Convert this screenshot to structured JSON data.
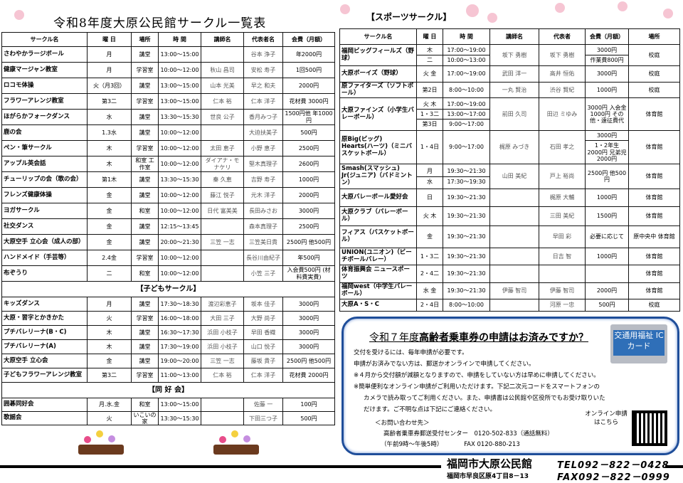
{
  "title": "令和8年度大原公民館サークル一覧表",
  "general": {
    "headers": [
      "サークル名",
      "曜 日",
      "場所",
      "時 間",
      "講師名",
      "代表者名",
      "会費（月額）"
    ],
    "rows": [
      [
        "さわやかラージボール",
        "月",
        "講堂",
        "13:00～15:00",
        "",
        "谷本 浄子",
        "年2000円"
      ],
      [
        "健康マージャン教室",
        "月",
        "学習室",
        "10:00～12:00",
        "秋山 昌司",
        "安松 寿子",
        "1回500円"
      ],
      [
        "ロコモ体操",
        "火（月3回）",
        "講堂",
        "13:00～15:00",
        "山本 光美",
        "早之 和夫",
        "2000円"
      ],
      [
        "フラワーアレンジ教室",
        "第3二",
        "学習室",
        "13:00～15:00",
        "仁本 裕",
        "仁本 洋子",
        "花材費 3000円"
      ],
      [
        "ほがらかフォークダンス",
        "水",
        "講堂",
        "13:30～15:30",
        "世良 公子",
        "香月みつ子",
        "1500円他 年1000円"
      ],
      [
        "鹿の会",
        "1.3水",
        "講堂",
        "10:00～12:00",
        "",
        "大迫扶美子",
        "500円"
      ],
      [
        "ペン・筆サークル",
        "木",
        "学習室",
        "10:00～12:00",
        "太田 恵子",
        "小野 恵子",
        "2500円"
      ],
      [
        "アップル英会話",
        "木",
        "和室 工作室",
        "10:00～12:00",
        "ダイアナ・モナケリ",
        "堅木真理子",
        "2600円"
      ],
      [
        "チューリップの会（歌の会）",
        "第1木",
        "講堂",
        "13:30～15:30",
        "秦 久恵",
        "吉野 寿子",
        "1000円"
      ],
      [
        "フレンズ健康体操",
        "金",
        "講堂",
        "10:00～12:00",
        "藤江 悦子",
        "元木 洋子",
        "2000円"
      ],
      [
        "ヨガサークル",
        "金",
        "和室",
        "10:00～12:00",
        "日代 富美美",
        "長田みさお",
        "3000円"
      ],
      [
        "社交ダンス",
        "金",
        "講堂",
        "12:15～13:45",
        "",
        "森本真理子",
        "2500円"
      ],
      [
        "大原空手 立心会（成人の部）",
        "金",
        "講堂",
        "20:00～21:30",
        "三笠 一志",
        "三笠美日貴",
        "2500円 他500円"
      ],
      [
        "ハンドメイド（手芸等）",
        "2.4金",
        "学習室",
        "10:00～12:00",
        "",
        "長谷川由紀子",
        "年500円"
      ],
      [
        "布ぞうり",
        "二",
        "和室",
        "10:00～12:00",
        "",
        "小笠 三子",
        "入会費500円 (材料費実費)"
      ]
    ]
  },
  "kids": {
    "section": "【子どもサークル】",
    "rows": [
      [
        "キッズダンス",
        "月",
        "講堂",
        "17:30～18:30",
        "渡辺彩恵子",
        "坂本 佳子",
        "3000円"
      ],
      [
        "大原・習字とかきかた",
        "火",
        "学習室",
        "16:00～18:00",
        "大田 三子",
        "大野 尚子",
        "3000円"
      ],
      [
        "プチバレリーナ(B・C)",
        "木",
        "講堂",
        "16:30～17:30",
        "浜田 小枝子",
        "早田 香織",
        "3000円"
      ],
      [
        "プチバレリーナ(A)",
        "木",
        "講堂",
        "17:30～19:00",
        "浜田 小枝子",
        "山口 悦子",
        "3000円"
      ],
      [
        "大原空手 立心会",
        "金",
        "講堂",
        "19:00～20:00",
        "三笠 一志",
        "藤坂 貴子",
        "2500円 他500円"
      ],
      [
        "子どもフラワーアレンジ教室",
        "第3二",
        "学習室",
        "11:00～13:00",
        "仁本 裕",
        "仁本 洋子",
        "花材費 2000円"
      ]
    ]
  },
  "hobby": {
    "section": "【同 好 会】",
    "rows": [
      [
        "囲碁同好会",
        "月.水.金",
        "和室",
        "13:00～15:00",
        "",
        "佐藤 一",
        "100円"
      ],
      [
        "歌謡会",
        "火",
        "いこいの家",
        "13:30～15:30",
        "",
        "下田三つ子",
        "500円"
      ]
    ]
  },
  "sports": {
    "title": "【スポーツサークル】",
    "headers": [
      "サークル名",
      "曜 日",
      "時 間",
      "講師名",
      "代表者",
      "会費（月額）",
      "場所"
    ],
    "rows": [
      {
        "name": "福岡ビッグフィールズ（野球）",
        "day": [
          "木",
          "二"
        ],
        "time": [
          "17:00～19:00",
          "10:00～13:00"
        ],
        "inst": "坂下 勇樹",
        "rep": "坂下 勇樹",
        "fee": [
          "3000円",
          "作業費800円"
        ],
        "place": "校庭"
      },
      {
        "name": "大原ボーイズ（野球）",
        "day": [
          "火 金"
        ],
        "time": [
          "17:00～19:00"
        ],
        "inst": "武田 洋一",
        "rep": "高井 恒佑",
        "fee": [
          "3000円"
        ],
        "place": "校庭"
      },
      {
        "name": "原ファイターズ（ソフトボール）",
        "day": [
          "第2日"
        ],
        "time": [
          "8:00～10:00"
        ],
        "inst": "一丸 賢治",
        "rep": "渋谷 賢紀",
        "fee": [
          "1000円"
        ],
        "place": "校庭"
      },
      {
        "name": "大原ファインズ（小学生バレーボール）",
        "day": [
          "火 木",
          "1・3二",
          "第3日"
        ],
        "time": [
          "17:00～19:00",
          "13:00～17:00",
          "9:00～17:00"
        ],
        "inst": "前田 久司",
        "rep": "田辺 ミゆみ",
        "fee": [
          "3000円 入会金1000円 その他・遠征費代"
        ],
        "place": "体育館"
      },
      {
        "name": "原Big(ビッグ) Hearts(ハーツ)（ミニバスケットボール）",
        "day": [
          "1・4日"
        ],
        "time": [
          "9:00～17:00"
        ],
        "inst": "梶原 みづき",
        "rep": "石田 孝之",
        "fee": [
          "3000円",
          "1・2年生 2000円 兄弟児2000円"
        ],
        "place": "体育館"
      },
      {
        "name": "Smash(スマッシュ) Jr(ジュニア)（バドミントン）",
        "day": [
          "月",
          "水"
        ],
        "time": [
          "19:30～21:30",
          "17:30～19:30"
        ],
        "inst": "山田 美紀",
        "rep": "戸上 裕尚",
        "fee": [
          "2500円 他500円"
        ],
        "place": "体育館"
      },
      {
        "name": "大原バレーボール愛好会",
        "day": [
          "日"
        ],
        "time": [
          "19:30～21:30"
        ],
        "inst": "",
        "rep": "梶原 大輔",
        "fee": [
          "1000円"
        ],
        "place": "体育館"
      },
      {
        "name": "大原クラブ（バレーボール）",
        "day": [
          "火 木"
        ],
        "time": [
          "19:30～21:30"
        ],
        "inst": "",
        "rep": "三田 美紀",
        "fee": [
          "1500円"
        ],
        "place": "体育館"
      },
      {
        "name": "フィアス（バスケットボール）",
        "day": [
          "金"
        ],
        "time": [
          "19:30～21:30"
        ],
        "inst": "",
        "rep": "早田 彩",
        "fee": [
          "必要に応じて"
        ],
        "place": "原中央中 体育館"
      },
      {
        "name": "UNION(ユニオン)（ビーチボールバレー）",
        "day": [
          "1・3二"
        ],
        "time": [
          "19:30～21:30"
        ],
        "inst": "",
        "rep": "日吉 智",
        "fee": [
          "1000円"
        ],
        "place": "体育館"
      },
      {
        "name": "体育振興会 ニュースポーツ",
        "day": [
          "2・4二"
        ],
        "time": [
          "19:30～21:30"
        ],
        "inst": "",
        "rep": "",
        "fee": [
          ""
        ],
        "place": "体育館"
      },
      {
        "name": "福岡west（中学生バレーボール）",
        "day": [
          "水 金"
        ],
        "time": [
          "19:30～21:30"
        ],
        "inst": "伊藤 智司",
        "rep": "伊藤 智司",
        "fee": [
          "2000円"
        ],
        "place": "体育館"
      },
      {
        "name": "大原A・S・C",
        "day": [
          "2・4日"
        ],
        "time": [
          "8:00～10:00"
        ],
        "inst": "",
        "rep": "河原 一忠",
        "fee": [
          "500円"
        ],
        "place": "校庭"
      }
    ]
  },
  "notice": {
    "title_a": "令和７年度",
    "title_b": "高齢者乗車券の申請はお済みですか？",
    "card": "交通用福祉 ICカード",
    "lines": [
      "交付を受けるには、毎年申請が必要です。",
      "申請がお済みでない方は、郵送かオンラインで申請してください。",
      "※４月から交付額が減額となりますので、申請をしていない方は早めに申請してください。",
      "※簡単便利なオンライン申請がご利用いただけます。下記二次元コードをスマートフォンの",
      "カメラで読み取ってご利用ください。また、申請書は公民館や区役所でもお受け取りいた",
      "だけます。ご不明な点は下記にご連絡ください。"
    ],
    "contact_title": "＜お問い合わせ先＞",
    "center": "高齢者乗車券郵送受付センター　0120-502-833（通話無料）",
    "hours": "（午前9時～午後5時）　　　　FAX 0120-880-213",
    "qr_label": "オンライン申請 はこちら"
  },
  "footer": {
    "name": "福岡市大原公民館",
    "address": "福岡市早良区原4丁目8－13",
    "tel": "TEL092－822－0428",
    "fax": "FAX092－822－0999"
  },
  "colors": {
    "notice_border": "#1f4e9a",
    "blossom": "#f4b6c8"
  }
}
